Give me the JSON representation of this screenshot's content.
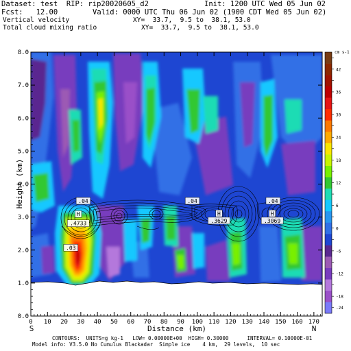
{
  "header": {
    "dataset": "Dataset: test  RIP: rip20020605_d2",
    "init": "Init: 1200 UTC Wed 05 Jun 02",
    "fcst": "Fcst:   12.00",
    "valid": "Valid: 0000 UTC Thu 06 Jun 02 (1900 CDT Wed 05 Jun 02)",
    "field1": "Vertical velocity",
    "xy1": "XY=  33.7,  9.5 to  38.1, 53.0",
    "field2": "Total cloud mixing ratio",
    "xy2": "XY=  33.7,  9.5 to  38.1, 53.0"
  },
  "footer": {
    "contours": "CONTOURS:  UNITS=g kg-1   LOW= 0.00000E+00  HIGH= 0.30000      INTERVAL= 0.10000E-01",
    "model": "Model info: V3.5.0 No Cumulus Blackadar  Simple ice    4 km,  29 levels,  10 sec"
  },
  "colors": {
    "cb_palette": [
      "#7a7afa",
      "#9a50c8",
      "#b478dc",
      "#783cbe",
      "#9c5ab4",
      "#5a2890",
      "#1e46d2",
      "#3070e6",
      "#2896f0",
      "#14c8ff",
      "#1edcb4",
      "#32c832",
      "#78f000",
      "#c8f500",
      "#fae600",
      "#ffaa00",
      "#ff7800",
      "#ff2d00",
      "#e61414",
      "#be0000",
      "#a01400",
      "#8c2800",
      "#783c14"
    ]
  },
  "chart_data": {
    "type": "heatmap",
    "ylabel": "Height (km)",
    "xlabel": "Distance (km)",
    "xlim": [
      0,
      175
    ],
    "ylim": [
      0,
      8
    ],
    "x_ticks": [
      0,
      10,
      20,
      30,
      40,
      50,
      60,
      70,
      80,
      90,
      100,
      110,
      120,
      130,
      140,
      150,
      160,
      170
    ],
    "y_ticks": [
      "0.0",
      "1.0",
      "2.0",
      "3.0",
      "4.0",
      "5.0",
      "6.0",
      "7.0",
      "8.0"
    ],
    "x_end_left": "S",
    "x_end_right": "N",
    "colorbar": {
      "label": "cm s-1",
      "ticks": [
        -24,
        -18,
        -15,
        -12,
        -9,
        -6,
        -3,
        0,
        3,
        6,
        9,
        12,
        15,
        18,
        21,
        24,
        27,
        30,
        33,
        36,
        39,
        42,
        45
      ],
      "shown_labels": [
        "42",
        "36",
        "30",
        "24",
        "18",
        "12",
        "6",
        "0",
        "-6",
        "-12",
        "-18",
        "-24"
      ]
    },
    "annotations": [
      {
        "text": "H",
        "x": 28.5,
        "y": 3.05
      },
      {
        "text": ".4733",
        "x": 28.5,
        "y": 2.77
      },
      {
        "text": ".04",
        "x": 31.5,
        "y": 3.45
      },
      {
        "text": ".03",
        "x": 24,
        "y": 2.03
      },
      {
        "text": ".04",
        "x": 97,
        "y": 3.45
      },
      {
        "text": "H",
        "x": 113,
        "y": 3.07
      },
      {
        "text": ".3629",
        "x": 113,
        "y": 2.85
      },
      {
        "text": ".04",
        "x": 145.5,
        "y": 3.45
      },
      {
        "text": "H",
        "x": 145,
        "y": 3.07
      },
      {
        "text": ".3069",
        "x": 145,
        "y": 2.85
      }
    ],
    "terrain_height_km": 0.95
  }
}
